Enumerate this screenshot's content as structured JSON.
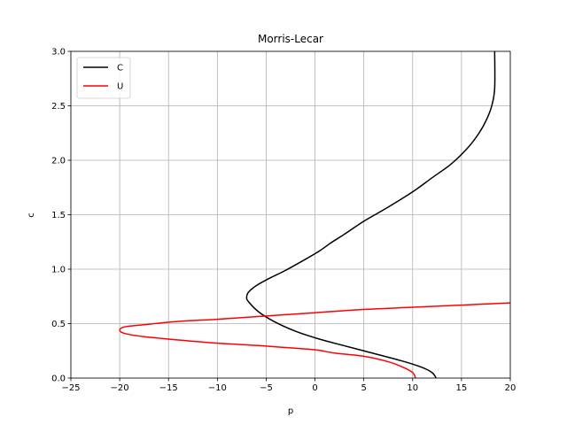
{
  "chart_data": {
    "type": "line",
    "title": "Morris-Lecar",
    "xlabel": "p",
    "ylabel": "c",
    "xlim": [
      -25,
      20
    ],
    "ylim": [
      0,
      3
    ],
    "xticks": [
      -25,
      -20,
      -15,
      -10,
      -5,
      0,
      5,
      10,
      15,
      20
    ],
    "yticks": [
      0.0,
      0.5,
      1.0,
      1.5,
      2.0,
      2.5,
      3.0
    ],
    "xtick_labels": [
      "−25",
      "−20",
      "−15",
      "−10",
      "−5",
      "0",
      "5",
      "10",
      "15",
      "20"
    ],
    "ytick_labels": [
      "0.0",
      "0.5",
      "1.0",
      "1.5",
      "2.0",
      "2.5",
      "3.0"
    ],
    "grid": true,
    "legend_position": "top-left",
    "series": [
      {
        "name": "C",
        "color": "#000000",
        "points": [
          [
            12.4,
            0.0
          ],
          [
            12.0,
            0.05
          ],
          [
            10.9,
            0.1
          ],
          [
            8.8,
            0.16
          ],
          [
            5.0,
            0.25
          ],
          [
            2.0,
            0.32
          ],
          [
            0.0,
            0.37
          ],
          [
            -2.0,
            0.43
          ],
          [
            -4.2,
            0.52
          ],
          [
            -5.8,
            0.61
          ],
          [
            -6.8,
            0.7
          ],
          [
            -7.0,
            0.74
          ],
          [
            -6.8,
            0.79
          ],
          [
            -6.0,
            0.85
          ],
          [
            -4.8,
            0.91
          ],
          [
            -3.0,
            0.99
          ],
          [
            -1.0,
            1.09
          ],
          [
            0.5,
            1.17
          ],
          [
            1.6,
            1.24
          ],
          [
            3.0,
            1.32
          ],
          [
            5.0,
            1.44
          ],
          [
            7.5,
            1.57
          ],
          [
            10.0,
            1.71
          ],
          [
            12.0,
            1.84
          ],
          [
            14.0,
            1.97
          ],
          [
            15.7,
            2.12
          ],
          [
            16.8,
            2.25
          ],
          [
            17.6,
            2.38
          ],
          [
            18.1,
            2.5
          ],
          [
            18.4,
            2.66
          ],
          [
            18.4,
            3.0
          ]
        ]
      },
      {
        "name": "U",
        "color": "#ff0000",
        "points": [
          [
            10.3,
            0.0
          ],
          [
            10.0,
            0.05
          ],
          [
            9.0,
            0.1
          ],
          [
            7.5,
            0.15
          ],
          [
            5.0,
            0.2
          ],
          [
            2.0,
            0.23
          ],
          [
            0.0,
            0.26
          ],
          [
            -3.0,
            0.28
          ],
          [
            -6.0,
            0.3
          ],
          [
            -10.0,
            0.32
          ],
          [
            -14.0,
            0.35
          ],
          [
            -17.5,
            0.38
          ],
          [
            -19.5,
            0.41
          ],
          [
            -20.0,
            0.44
          ],
          [
            -19.5,
            0.47
          ],
          [
            -17.5,
            0.49
          ],
          [
            -14.0,
            0.52
          ],
          [
            -10.0,
            0.54
          ],
          [
            -5.0,
            0.57
          ],
          [
            0.0,
            0.6
          ],
          [
            5.0,
            0.63
          ],
          [
            10.0,
            0.65
          ],
          [
            15.0,
            0.67
          ],
          [
            20.0,
            0.69
          ]
        ]
      }
    ]
  }
}
